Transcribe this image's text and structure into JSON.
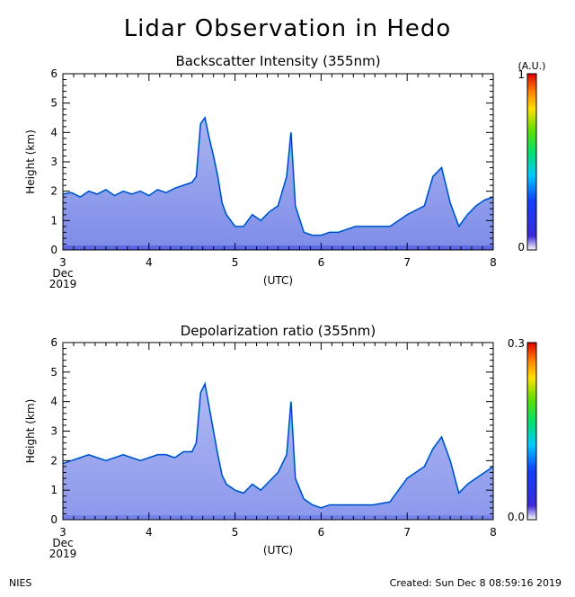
{
  "title": "Lidar Observation in Hedo",
  "footer": {
    "left": "NIES",
    "right": "Created: Sun Dec  8 08:59:16 2019"
  },
  "colors": {
    "axis": "#000000",
    "background": "#ffffff"
  },
  "chart_data": [
    {
      "type": "heatmap",
      "title": "Backscatter Intensity (355nm)",
      "xlabel": "(UTC)",
      "ylabel": "Height (km)",
      "xlim": [
        3,
        8
      ],
      "ylim": [
        0,
        6
      ],
      "x_ticks": [
        "3",
        "4",
        "5",
        "6",
        "7",
        "8"
      ],
      "x_start_month": "Dec",
      "x_start_year": "2019",
      "y_ticks": [
        "0",
        "1",
        "2",
        "3",
        "4",
        "5",
        "6"
      ],
      "colorbar": {
        "min": 0,
        "max": 1,
        "min_label": "0",
        "max_label": "1",
        "unit": "(A.U.)"
      },
      "cloud_top_km": [
        [
          3.0,
          1.9
        ],
        [
          3.1,
          1.95
        ],
        [
          3.2,
          1.8
        ],
        [
          3.3,
          2.0
        ],
        [
          3.4,
          1.9
        ],
        [
          3.5,
          2.05
        ],
        [
          3.6,
          1.85
        ],
        [
          3.7,
          2.0
        ],
        [
          3.8,
          1.9
        ],
        [
          3.9,
          2.0
        ],
        [
          4.0,
          1.85
        ],
        [
          4.1,
          2.05
        ],
        [
          4.2,
          1.95
        ],
        [
          4.3,
          2.1
        ],
        [
          4.4,
          2.2
        ],
        [
          4.5,
          2.3
        ],
        [
          4.55,
          2.5
        ],
        [
          4.6,
          4.3
        ],
        [
          4.65,
          4.5
        ],
        [
          4.7,
          3.8
        ],
        [
          4.75,
          3.2
        ],
        [
          4.8,
          2.5
        ],
        [
          4.85,
          1.6
        ],
        [
          4.9,
          1.2
        ],
        [
          5.0,
          0.8
        ],
        [
          5.1,
          0.8
        ],
        [
          5.2,
          1.2
        ],
        [
          5.3,
          1.0
        ],
        [
          5.4,
          1.3
        ],
        [
          5.5,
          1.5
        ],
        [
          5.6,
          2.5
        ],
        [
          5.65,
          4.0
        ],
        [
          5.7,
          1.5
        ],
        [
          5.8,
          0.6
        ],
        [
          5.9,
          0.5
        ],
        [
          6.0,
          0.5
        ],
        [
          6.1,
          0.6
        ],
        [
          6.2,
          0.6
        ],
        [
          6.4,
          0.8
        ],
        [
          6.6,
          0.8
        ],
        [
          6.8,
          0.8
        ],
        [
          7.0,
          1.2
        ],
        [
          7.2,
          1.5
        ],
        [
          7.3,
          2.5
        ],
        [
          7.4,
          2.8
        ],
        [
          7.5,
          1.6
        ],
        [
          7.6,
          0.8
        ],
        [
          7.7,
          1.2
        ],
        [
          7.8,
          1.5
        ],
        [
          7.9,
          1.7
        ],
        [
          8.0,
          1.8
        ]
      ]
    },
    {
      "type": "heatmap",
      "title": "Depolarization ratio (355nm)",
      "xlabel": "(UTC)",
      "ylabel": "Height (km)",
      "xlim": [
        3,
        8
      ],
      "ylim": [
        0,
        6
      ],
      "x_ticks": [
        "3",
        "4",
        "5",
        "6",
        "7",
        "8"
      ],
      "x_start_month": "Dec",
      "x_start_year": "2019",
      "y_ticks": [
        "0",
        "1",
        "2",
        "3",
        "4",
        "5",
        "6"
      ],
      "colorbar": {
        "min": 0.0,
        "max": 0.3,
        "min_label": "0.0",
        "max_label": "0.3"
      },
      "cloud_top_km": [
        [
          3.0,
          1.9
        ],
        [
          3.1,
          2.0
        ],
        [
          3.2,
          2.1
        ],
        [
          3.3,
          2.2
        ],
        [
          3.4,
          2.1
        ],
        [
          3.5,
          2.0
        ],
        [
          3.6,
          2.1
        ],
        [
          3.7,
          2.2
        ],
        [
          3.8,
          2.1
        ],
        [
          3.9,
          2.0
        ],
        [
          4.0,
          2.1
        ],
        [
          4.1,
          2.2
        ],
        [
          4.2,
          2.2
        ],
        [
          4.3,
          2.1
        ],
        [
          4.4,
          2.3
        ],
        [
          4.5,
          2.3
        ],
        [
          4.55,
          2.6
        ],
        [
          4.6,
          4.3
        ],
        [
          4.65,
          4.6
        ],
        [
          4.7,
          3.8
        ],
        [
          4.75,
          3.0
        ],
        [
          4.8,
          2.2
        ],
        [
          4.85,
          1.5
        ],
        [
          4.9,
          1.2
        ],
        [
          5.0,
          1.0
        ],
        [
          5.1,
          0.9
        ],
        [
          5.2,
          1.2
        ],
        [
          5.3,
          1.0
        ],
        [
          5.4,
          1.3
        ],
        [
          5.5,
          1.6
        ],
        [
          5.6,
          2.2
        ],
        [
          5.65,
          4.0
        ],
        [
          5.7,
          1.4
        ],
        [
          5.8,
          0.7
        ],
        [
          5.9,
          0.5
        ],
        [
          6.0,
          0.4
        ],
        [
          6.1,
          0.5
        ],
        [
          6.2,
          0.5
        ],
        [
          6.4,
          0.5
        ],
        [
          6.6,
          0.5
        ],
        [
          6.8,
          0.6
        ],
        [
          7.0,
          1.4
        ],
        [
          7.2,
          1.8
        ],
        [
          7.3,
          2.4
        ],
        [
          7.4,
          2.8
        ],
        [
          7.5,
          2.0
        ],
        [
          7.6,
          0.9
        ],
        [
          7.7,
          1.2
        ],
        [
          7.8,
          1.4
        ],
        [
          7.9,
          1.6
        ],
        [
          8.0,
          1.8
        ]
      ]
    }
  ]
}
